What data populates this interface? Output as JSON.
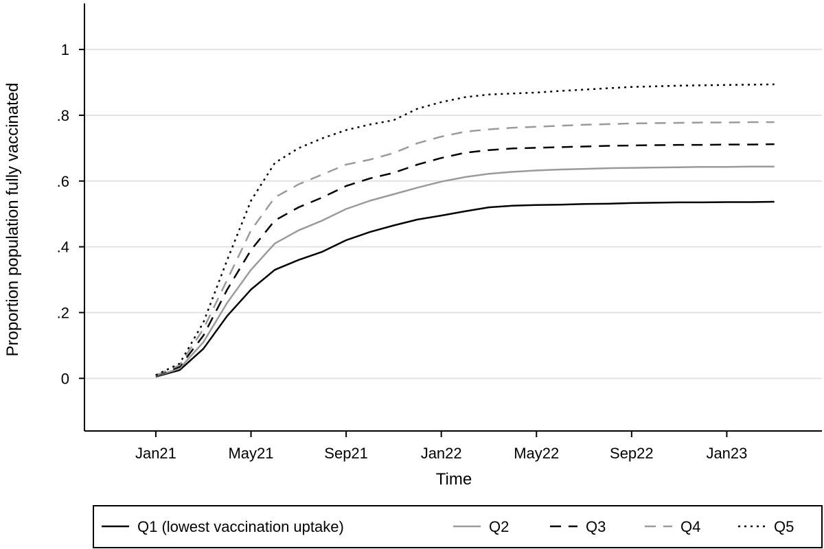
{
  "chart_data": {
    "type": "line",
    "title": "",
    "xlabel": "Time",
    "ylabel": "Proportion population fully vaccinated",
    "x_ticks": [
      "Jan21",
      "May21",
      "Sep21",
      "Jan22",
      "May22",
      "Sep22",
      "Jan23"
    ],
    "y_ticks": [
      "0",
      ".2",
      ".4",
      ".6",
      ".8",
      "1"
    ],
    "y_tick_values": [
      0,
      0.2,
      0.4,
      0.6,
      0.8,
      1
    ],
    "ylim": [
      -0.16,
      1.14
    ],
    "xlim": [
      "2020-10",
      "2023-05"
    ],
    "grid": "horizontal",
    "legend_position": "bottom",
    "x": [
      "2021-01",
      "2021-02",
      "2021-03",
      "2021-04",
      "2021-05",
      "2021-06",
      "2021-07",
      "2021-08",
      "2021-09",
      "2021-10",
      "2021-11",
      "2021-12",
      "2022-01",
      "2022-02",
      "2022-03",
      "2022-04",
      "2022-05",
      "2022-06",
      "2022-07",
      "2022-08",
      "2022-09",
      "2022-10",
      "2022-11",
      "2022-12",
      "2023-01",
      "2023-02",
      "2023-03"
    ],
    "series": [
      {
        "name": "Q1 (lowest vaccination uptake)",
        "color": "#000000",
        "dash": "solid",
        "values": [
          0.005,
          0.025,
          0.09,
          0.19,
          0.27,
          0.33,
          0.36,
          0.385,
          0.42,
          0.445,
          0.465,
          0.483,
          0.495,
          0.508,
          0.52,
          0.525,
          0.527,
          0.528,
          0.53,
          0.531,
          0.533,
          0.534,
          0.535,
          0.535,
          0.536,
          0.536,
          0.537
        ]
      },
      {
        "name": "Q2",
        "color": "#9a9a9a",
        "dash": "solid",
        "values": [
          0.007,
          0.03,
          0.11,
          0.23,
          0.33,
          0.41,
          0.45,
          0.48,
          0.515,
          0.54,
          0.56,
          0.58,
          0.598,
          0.612,
          0.622,
          0.628,
          0.632,
          0.635,
          0.637,
          0.639,
          0.64,
          0.641,
          0.642,
          0.643,
          0.643,
          0.644,
          0.644
        ]
      },
      {
        "name": "Q3",
        "color": "#000000",
        "dash": "dashed",
        "values": [
          0.008,
          0.035,
          0.13,
          0.27,
          0.39,
          0.48,
          0.52,
          0.55,
          0.585,
          0.608,
          0.625,
          0.65,
          0.67,
          0.686,
          0.694,
          0.699,
          0.701,
          0.703,
          0.705,
          0.707,
          0.708,
          0.709,
          0.71,
          0.71,
          0.711,
          0.711,
          0.712
        ]
      },
      {
        "name": "Q4",
        "color": "#9a9a9a",
        "dash": "dashed",
        "values": [
          0.009,
          0.04,
          0.15,
          0.3,
          0.45,
          0.55,
          0.59,
          0.62,
          0.65,
          0.665,
          0.685,
          0.715,
          0.735,
          0.75,
          0.757,
          0.762,
          0.765,
          0.768,
          0.771,
          0.773,
          0.775,
          0.776,
          0.777,
          0.778,
          0.778,
          0.779,
          0.779
        ]
      },
      {
        "name": "Q5",
        "color": "#000000",
        "dash": "dotted",
        "values": [
          0.01,
          0.045,
          0.17,
          0.36,
          0.54,
          0.655,
          0.7,
          0.73,
          0.755,
          0.772,
          0.785,
          0.82,
          0.84,
          0.855,
          0.863,
          0.866,
          0.869,
          0.874,
          0.878,
          0.882,
          0.886,
          0.888,
          0.89,
          0.891,
          0.892,
          0.893,
          0.894
        ]
      }
    ]
  }
}
